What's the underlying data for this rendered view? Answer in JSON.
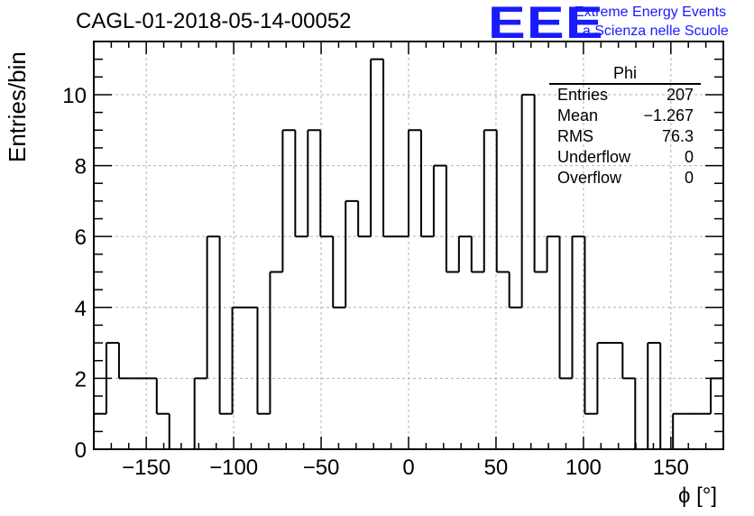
{
  "title": "CAGL-01-2018-05-14-00052",
  "logo": {
    "mark": "EEE",
    "line1": "Extreme Energy Events",
    "line2": "La Scienza nelle Scuole",
    "color": "#1a1aff"
  },
  "stats": {
    "name": "Phi",
    "rows": [
      {
        "label": "Entries",
        "value": "207"
      },
      {
        "label": "Mean",
        "value": "−1.267"
      },
      {
        "label": "RMS",
        "value": "76.3"
      },
      {
        "label": "Underflow",
        "value": "0"
      },
      {
        "label": "Overflow",
        "value": "0"
      }
    ]
  },
  "chart_data": {
    "type": "histogram",
    "title": "CAGL-01-2018-05-14-00052",
    "xlabel": "ϕ [°]",
    "ylabel": "Entries/bin",
    "xlim": [
      -180,
      180
    ],
    "ylim": [
      0,
      11.5
    ],
    "xticks": [
      -150,
      -100,
      -50,
      0,
      50,
      100,
      150
    ],
    "xtick_labels": [
      "−150",
      "−100",
      "−50",
      "0",
      "50",
      "100",
      "150"
    ],
    "yticks": [
      0,
      2,
      4,
      6,
      8,
      10
    ],
    "ytick_labels": [
      "0",
      "2",
      "4",
      "6",
      "8",
      "10"
    ],
    "grid": true,
    "bin_width": 7.2,
    "values": [
      1,
      3,
      2,
      2,
      2,
      1,
      0,
      0,
      2,
      6,
      1,
      4,
      4,
      1,
      5,
      9,
      6,
      9,
      6,
      4,
      7,
      6,
      11,
      6,
      6,
      9,
      6,
      8,
      5,
      6,
      5,
      9,
      5,
      4,
      10,
      5,
      6,
      2,
      6,
      1,
      3,
      3,
      2,
      0,
      3,
      0,
      1,
      1,
      1,
      2
    ],
    "line_color": "#000000"
  }
}
